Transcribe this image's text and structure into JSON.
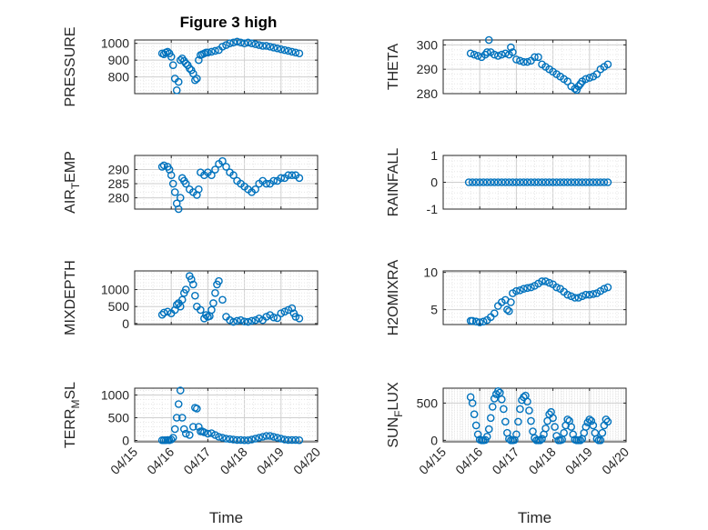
{
  "figure_title": "Figure 3 high",
  "colors": {
    "marker": "#0072BD",
    "axis": "#262626",
    "grid": "#d9d9d9",
    "background": "#ffffff"
  },
  "chart_data": [
    {
      "type": "scatter",
      "ylabel": "PRESSURE",
      "xlabel": "",
      "ylim": [
        700,
        1020
      ],
      "yticks": [
        "800",
        "900",
        "1000"
      ],
      "ytick_values": [
        800,
        900,
        1000
      ],
      "xlim": [
        0,
        5
      ],
      "xticks": [],
      "grid": true,
      "x": [
        0.75,
        0.8,
        0.85,
        0.9,
        0.95,
        1.0,
        1.05,
        1.1,
        1.15,
        1.2,
        1.25,
        1.3,
        1.35,
        1.4,
        1.45,
        1.5,
        1.55,
        1.6,
        1.65,
        1.7,
        1.75,
        1.8,
        1.85,
        1.9,
        1.95,
        2.0,
        2.1,
        2.2,
        2.3,
        2.4,
        2.5,
        2.6,
        2.7,
        2.8,
        2.9,
        3.0,
        3.1,
        3.2,
        3.3,
        3.4,
        3.5,
        3.6,
        3.7,
        3.8,
        3.9,
        4.0,
        4.1,
        4.2,
        4.3,
        4.4,
        4.5
      ],
      "y": [
        940,
        935,
        945,
        950,
        940,
        920,
        870,
        790,
        720,
        770,
        900,
        910,
        895,
        880,
        870,
        850,
        840,
        820,
        780,
        790,
        900,
        930,
        935,
        940,
        945,
        945,
        950,
        955,
        960,
        980,
        990,
        1000,
        1005,
        1010,
        1005,
        1000,
        1005,
        1000,
        995,
        990,
        985,
        985,
        980,
        975,
        970,
        965,
        960,
        955,
        950,
        945,
        940
      ]
    },
    {
      "type": "scatter",
      "ylabel": "THETA",
      "xlabel": "",
      "ylim": [
        280,
        302
      ],
      "yticks": [
        "280",
        "290",
        "300"
      ],
      "ytick_values": [
        280,
        290,
        300
      ],
      "xlim": [
        0,
        5
      ],
      "xticks": [],
      "grid": true,
      "x": [
        0.75,
        0.85,
        0.95,
        1.05,
        1.15,
        1.2,
        1.25,
        1.3,
        1.4,
        1.5,
        1.6,
        1.7,
        1.8,
        1.85,
        1.9,
        2.0,
        2.1,
        2.2,
        2.3,
        2.4,
        2.5,
        2.6,
        2.7,
        2.8,
        2.9,
        3.0,
        3.1,
        3.2,
        3.3,
        3.4,
        3.5,
        3.6,
        3.65,
        3.7,
        3.75,
        3.8,
        3.9,
        4.0,
        4.1,
        4.2,
        4.3,
        4.4,
        4.5
      ],
      "y": [
        296.5,
        296,
        295.5,
        295,
        296,
        297,
        302,
        297,
        296,
        295.5,
        296,
        296.5,
        296,
        299,
        297,
        294,
        293.5,
        293,
        293,
        293.5,
        295,
        295,
        292,
        291,
        290,
        289,
        288,
        287,
        286,
        285,
        283,
        282,
        281.5,
        283,
        284,
        285,
        286,
        286.5,
        287,
        288,
        290,
        291,
        292
      ]
    },
    {
      "type": "scatter",
      "ylabel": "AIR_TEMP",
      "xlabel": "",
      "ylim": [
        276,
        295
      ],
      "yticks": [
        "280",
        "285",
        "290"
      ],
      "ytick_values": [
        280,
        285,
        290
      ],
      "xlim": [
        0,
        5
      ],
      "xticks": [],
      "grid": true,
      "x": [
        0.75,
        0.8,
        0.9,
        0.95,
        1.0,
        1.05,
        1.1,
        1.15,
        1.2,
        1.25,
        1.3,
        1.35,
        1.4,
        1.5,
        1.6,
        1.7,
        1.75,
        1.8,
        1.9,
        2.0,
        2.1,
        2.2,
        2.3,
        2.4,
        2.5,
        2.6,
        2.7,
        2.8,
        2.9,
        3.0,
        3.1,
        3.2,
        3.3,
        3.4,
        3.5,
        3.6,
        3.7,
        3.8,
        3.9,
        4.0,
        4.1,
        4.2,
        4.3,
        4.4,
        4.5
      ],
      "y": [
        291,
        291.5,
        291,
        290,
        288,
        285,
        282,
        278,
        276,
        280,
        287,
        286,
        285,
        283,
        282,
        281,
        283,
        289,
        288,
        289,
        288,
        290,
        292,
        293,
        291,
        289,
        288,
        286,
        285,
        284,
        283,
        282,
        283,
        285,
        286,
        285,
        285,
        286,
        286,
        287,
        287,
        288,
        288,
        288,
        287
      ]
    },
    {
      "type": "scatter",
      "ylabel": "RAINFALL",
      "xlabel": "",
      "ylim": [
        -1,
        1
      ],
      "yticks": [
        "-1",
        "0",
        "1"
      ],
      "ytick_values": [
        -1,
        0,
        1
      ],
      "xlim": [
        0,
        5
      ],
      "xticks": [],
      "grid": true,
      "x": [
        0.7,
        0.8,
        0.9,
        1.0,
        1.1,
        1.2,
        1.3,
        1.4,
        1.5,
        1.6,
        1.7,
        1.8,
        1.9,
        2.0,
        2.1,
        2.2,
        2.3,
        2.4,
        2.5,
        2.6,
        2.7,
        2.8,
        2.9,
        3.0,
        3.1,
        3.2,
        3.3,
        3.4,
        3.5,
        3.6,
        3.7,
        3.8,
        3.9,
        4.0,
        4.1,
        4.2,
        4.3,
        4.4,
        4.5
      ],
      "y": [
        0,
        0,
        0,
        0,
        0,
        0,
        0,
        0,
        0,
        0,
        0,
        0,
        0,
        0,
        0,
        0,
        0,
        0,
        0,
        0,
        0,
        0,
        0,
        0,
        0,
        0,
        0,
        0,
        0,
        0,
        0,
        0,
        0,
        0,
        0,
        0,
        0,
        0,
        0
      ]
    },
    {
      "type": "scatter",
      "ylabel": "MIXDEPTH",
      "xlabel": "",
      "ylim": [
        -30,
        1550
      ],
      "yticks": [
        "0",
        "500",
        "1000"
      ],
      "ytick_values": [
        0,
        500,
        1000
      ],
      "xlim": [
        0,
        5
      ],
      "xticks": [],
      "grid": true,
      "x": [
        0.75,
        0.8,
        0.9,
        1.0,
        1.1,
        1.15,
        1.2,
        1.25,
        1.3,
        1.35,
        1.4,
        1.5,
        1.55,
        1.6,
        1.65,
        1.7,
        1.8,
        1.9,
        1.95,
        2.0,
        2.05,
        2.1,
        2.15,
        2.2,
        2.25,
        2.3,
        2.4,
        2.5,
        2.6,
        2.7,
        2.8,
        2.9,
        3.0,
        3.1,
        3.2,
        3.3,
        3.4,
        3.5,
        3.6,
        3.7,
        3.8,
        3.9,
        4.0,
        4.1,
        4.2,
        4.3,
        4.35,
        4.4,
        4.5
      ],
      "y": [
        260,
        320,
        350,
        300,
        400,
        550,
        600,
        500,
        700,
        900,
        1000,
        1400,
        1300,
        1150,
        820,
        500,
        400,
        150,
        250,
        200,
        220,
        400,
        600,
        900,
        1150,
        1250,
        700,
        200,
        100,
        50,
        80,
        100,
        60,
        50,
        80,
        100,
        150,
        100,
        200,
        250,
        180,
        160,
        300,
        350,
        400,
        450,
        300,
        200,
        150
      ]
    },
    {
      "type": "scatter",
      "ylabel": "H2OMIXRA",
      "xlabel": "",
      "ylim": [
        3,
        10.2
      ],
      "yticks": [
        "5",
        "10"
      ],
      "ytick_values": [
        5,
        10
      ],
      "xlim": [
        0,
        5
      ],
      "xticks": [],
      "grid": true,
      "x": [
        0.75,
        0.8,
        0.9,
        1.0,
        1.1,
        1.2,
        1.3,
        1.4,
        1.5,
        1.6,
        1.7,
        1.75,
        1.8,
        1.85,
        1.9,
        2.0,
        2.1,
        2.2,
        2.3,
        2.4,
        2.5,
        2.6,
        2.7,
        2.8,
        2.9,
        3.0,
        3.1,
        3.2,
        3.3,
        3.4,
        3.5,
        3.6,
        3.7,
        3.8,
        3.9,
        4.0,
        4.1,
        4.2,
        4.3,
        4.4,
        4.5
      ],
      "y": [
        3.5,
        3.5,
        3.4,
        3.3,
        3.4,
        3.6,
        4,
        4.5,
        5.5,
        6,
        6.3,
        5,
        4.8,
        6,
        7.2,
        7.5,
        7.6,
        7.8,
        7.9,
        8,
        8.2,
        8.5,
        8.8,
        8.8,
        8.6,
        8.4,
        8,
        7.8,
        7.4,
        7,
        6.8,
        6.6,
        6.6,
        6.8,
        7,
        7,
        7.1,
        7.2,
        7.5,
        7.8,
        8
      ]
    },
    {
      "type": "scatter",
      "ylabel": "TERR_MSL",
      "xlabel": "Time",
      "ylim": [
        -30,
        1150
      ],
      "yticks": [
        "0",
        "500",
        "1000"
      ],
      "ytick_values": [
        0,
        500,
        1000
      ],
      "xlim": [
        0,
        5
      ],
      "xticks": [
        "04/15",
        "04/16",
        "04/17",
        "04/18",
        "04/19",
        "04/20"
      ],
      "grid": true,
      "x": [
        0.75,
        0.8,
        0.85,
        0.9,
        0.95,
        1.0,
        1.05,
        1.1,
        1.15,
        1.2,
        1.25,
        1.3,
        1.35,
        1.4,
        1.5,
        1.6,
        1.65,
        1.7,
        1.75,
        1.8,
        1.85,
        1.9,
        2.0,
        2.1,
        2.2,
        2.3,
        2.4,
        2.5,
        2.6,
        2.7,
        2.8,
        2.9,
        3.0,
        3.1,
        3.2,
        3.3,
        3.4,
        3.5,
        3.6,
        3.7,
        3.8,
        3.9,
        4.0,
        4.1,
        4.2,
        4.3,
        4.4,
        4.5
      ],
      "y": [
        5,
        5,
        5,
        10,
        5,
        20,
        60,
        250,
        500,
        800,
        1100,
        500,
        250,
        150,
        120,
        300,
        720,
        700,
        300,
        200,
        200,
        180,
        150,
        160,
        120,
        80,
        60,
        40,
        30,
        20,
        10,
        10,
        5,
        5,
        20,
        40,
        60,
        80,
        100,
        100,
        80,
        60,
        40,
        20,
        10,
        10,
        10,
        5
      ]
    },
    {
      "type": "scatter",
      "ylabel": "SUN_FLUX",
      "xlabel": "Time",
      "ylim": [
        -20,
        700
      ],
      "yticks": [
        "0",
        "500"
      ],
      "ytick_values": [
        0,
        500
      ],
      "xlim": [
        0,
        5
      ],
      "xticks": [
        "04/15",
        "04/16",
        "04/17",
        "04/18",
        "04/19",
        "04/20"
      ],
      "grid": true,
      "x": [
        0.75,
        0.8,
        0.85,
        0.9,
        0.95,
        1.0,
        1.05,
        1.1,
        1.15,
        1.2,
        1.25,
        1.3,
        1.35,
        1.4,
        1.45,
        1.5,
        1.55,
        1.6,
        1.65,
        1.7,
        1.75,
        1.8,
        1.85,
        1.9,
        1.95,
        2.0,
        2.05,
        2.1,
        2.15,
        2.2,
        2.25,
        2.3,
        2.35,
        2.4,
        2.45,
        2.5,
        2.55,
        2.6,
        2.65,
        2.7,
        2.75,
        2.8,
        2.85,
        2.9,
        2.95,
        3.0,
        3.05,
        3.1,
        3.15,
        3.2,
        3.25,
        3.3,
        3.35,
        3.4,
        3.45,
        3.5,
        3.55,
        3.6,
        3.65,
        3.7,
        3.75,
        3.8,
        3.85,
        3.9,
        3.95,
        4.0,
        4.05,
        4.1,
        4.15,
        4.2,
        4.25,
        4.3,
        4.35,
        4.4,
        4.45,
        4.5
      ],
      "y": [
        580,
        500,
        350,
        200,
        80,
        10,
        0,
        0,
        5,
        50,
        150,
        300,
        450,
        560,
        620,
        660,
        640,
        550,
        420,
        250,
        100,
        20,
        0,
        0,
        5,
        80,
        250,
        420,
        540,
        580,
        600,
        520,
        400,
        260,
        120,
        30,
        0,
        0,
        0,
        20,
        80,
        160,
        260,
        350,
        380,
        300,
        180,
        60,
        0,
        0,
        10,
        100,
        200,
        280,
        260,
        180,
        80,
        10,
        0,
        0,
        0,
        20,
        100,
        180,
        240,
        280,
        260,
        200,
        100,
        20,
        0,
        0,
        100,
        200,
        280,
        250
      ]
    }
  ]
}
